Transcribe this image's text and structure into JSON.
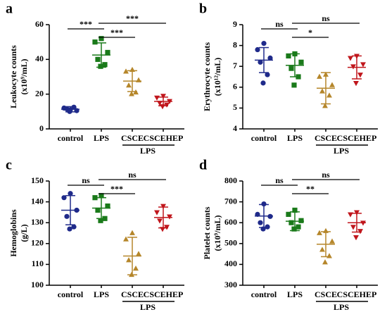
{
  "chart_data": [
    {
      "type": "dotplot",
      "letter": "a",
      "ylabel": [
        "Leukocyte counts",
        "(x10⁹/mL)"
      ],
      "ylim": [
        0,
        60
      ],
      "yticks": [
        0,
        20,
        40,
        60
      ],
      "group_label": "LPS",
      "groups": [
        {
          "name": "control",
          "color": "#1f2a8a",
          "marker": "circle",
          "points": [
            11,
            12,
            10.5,
            11.5,
            12.5,
            10
          ],
          "mean": 11.3,
          "sd": 1.5
        },
        {
          "name": "LPS",
          "color": "#1a7a1a",
          "marker": "square",
          "points": [
            52,
            50,
            44,
            40,
            37,
            36
          ],
          "mean": 42.5,
          "sd": 7
        },
        {
          "name": "CSCE",
          "color": "#b5862a",
          "marker": "triangle-up",
          "points": [
            34,
            33,
            28,
            25,
            21,
            20
          ],
          "mean": 27.5,
          "sd": 6
        },
        {
          "name": "CSCEHEP",
          "color": "#c0161c",
          "marker": "triangle-down",
          "points": [
            19,
            18,
            16,
            15,
            14,
            13
          ],
          "mean": 15.8,
          "sd": 2.5
        }
      ],
      "comparisons": [
        {
          "groups": [
            "control",
            "LPS"
          ],
          "label": "***"
        },
        {
          "groups": [
            "LPS",
            "CSCE"
          ],
          "label": "***"
        },
        {
          "groups": [
            "LPS",
            "CSCEHEP"
          ],
          "label": "***"
        }
      ]
    },
    {
      "type": "dotplot",
      "letter": "b",
      "ylabel": [
        "Erythrocyte counts",
        "(x10¹²/mL)"
      ],
      "ylim": [
        4,
        9
      ],
      "yticks": [
        4,
        5,
        6,
        7,
        8,
        9
      ],
      "group_label": "LPS",
      "groups": [
        {
          "name": "control",
          "color": "#1f2a8a",
          "marker": "circle",
          "points": [
            8.1,
            7.8,
            7.4,
            7.2,
            6.6,
            6.2
          ],
          "mean": 7.3,
          "sd": 0.6
        },
        {
          "name": "LPS",
          "color": "#1a7a1a",
          "marker": "square",
          "points": [
            7.6,
            7.5,
            7.2,
            6.9,
            6.5,
            6.1
          ],
          "mean": 7.05,
          "sd": 0.55
        },
        {
          "name": "CSCE",
          "color": "#b5862a",
          "marker": "triangle-up",
          "points": [
            6.6,
            6.5,
            6.1,
            5.8,
            5.6,
            5.1
          ],
          "mean": 5.95,
          "sd": 0.75
        },
        {
          "name": "CSCEHEP",
          "color": "#c0161c",
          "marker": "triangle-down",
          "points": [
            7.5,
            7.4,
            7.1,
            7.0,
            6.6,
            6.2
          ],
          "mean": 6.95,
          "sd": 0.55
        }
      ],
      "comparisons": [
        {
          "groups": [
            "control",
            "LPS"
          ],
          "label": "ns"
        },
        {
          "groups": [
            "LPS",
            "CSCE"
          ],
          "label": "*"
        },
        {
          "groups": [
            "LPS",
            "CSCEHEP"
          ],
          "label": "ns"
        }
      ]
    },
    {
      "type": "dotplot",
      "letter": "c",
      "ylabel": [
        "Hemoglobins",
        "(g/L)"
      ],
      "ylim": [
        100,
        150
      ],
      "yticks": [
        100,
        110,
        120,
        130,
        140,
        150
      ],
      "group_label": "LPS",
      "groups": [
        {
          "name": "control",
          "color": "#1f2a8a",
          "marker": "circle",
          "points": [
            144,
            142,
            136,
            133,
            128,
            127
          ],
          "mean": 136,
          "sd": 7
        },
        {
          "name": "LPS",
          "color": "#1a7a1a",
          "marker": "square",
          "points": [
            143,
            142,
            138,
            136,
            132,
            131
          ],
          "mean": 137,
          "sd": 5
        },
        {
          "name": "CSCE",
          "color": "#b5862a",
          "marker": "triangle-up",
          "points": [
            125,
            122,
            115,
            112,
            108,
            105
          ],
          "mean": 114,
          "sd": 9
        },
        {
          "name": "CSCEHEP",
          "color": "#c0161c",
          "marker": "triangle-down",
          "points": [
            138,
            135,
            133,
            131,
            128,
            127
          ],
          "mean": 132.5,
          "sd": 5
        }
      ],
      "comparisons": [
        {
          "groups": [
            "control",
            "LPS"
          ],
          "label": "ns"
        },
        {
          "groups": [
            "LPS",
            "CSCE"
          ],
          "label": "***"
        },
        {
          "groups": [
            "LPS",
            "CSCEHEP"
          ],
          "label": "ns"
        }
      ]
    },
    {
      "type": "dotplot",
      "letter": "d",
      "ylabel": [
        "Platelet counts",
        "(x10⁹/mL)"
      ],
      "ylim": [
        300,
        800
      ],
      "yticks": [
        300,
        400,
        500,
        600,
        700,
        800
      ],
      "group_label": "LPS",
      "groups": [
        {
          "name": "control",
          "color": "#1f2a8a",
          "marker": "circle",
          "points": [
            690,
            640,
            630,
            600,
            580,
            570
          ],
          "mean": 632,
          "sd": 55
        },
        {
          "name": "LPS",
          "color": "#1a7a1a",
          "marker": "square",
          "points": [
            660,
            640,
            610,
            600,
            580,
            570
          ],
          "mean": 607,
          "sd": 45
        },
        {
          "name": "CSCE",
          "color": "#b5862a",
          "marker": "triangle-up",
          "points": [
            560,
            550,
            510,
            470,
            440,
            410
          ],
          "mean": 497,
          "sd": 60
        },
        {
          "name": "CSCEHEP",
          "color": "#c0161c",
          "marker": "triangle-down",
          "points": [
            650,
            640,
            600,
            580,
            560,
            530
          ],
          "mean": 600,
          "sd": 45
        }
      ],
      "comparisons": [
        {
          "groups": [
            "control",
            "LPS"
          ],
          "label": "ns"
        },
        {
          "groups": [
            "LPS",
            "CSCE"
          ],
          "label": "**"
        },
        {
          "groups": [
            "LPS",
            "CSCEHEP"
          ],
          "label": "ns"
        }
      ]
    }
  ]
}
